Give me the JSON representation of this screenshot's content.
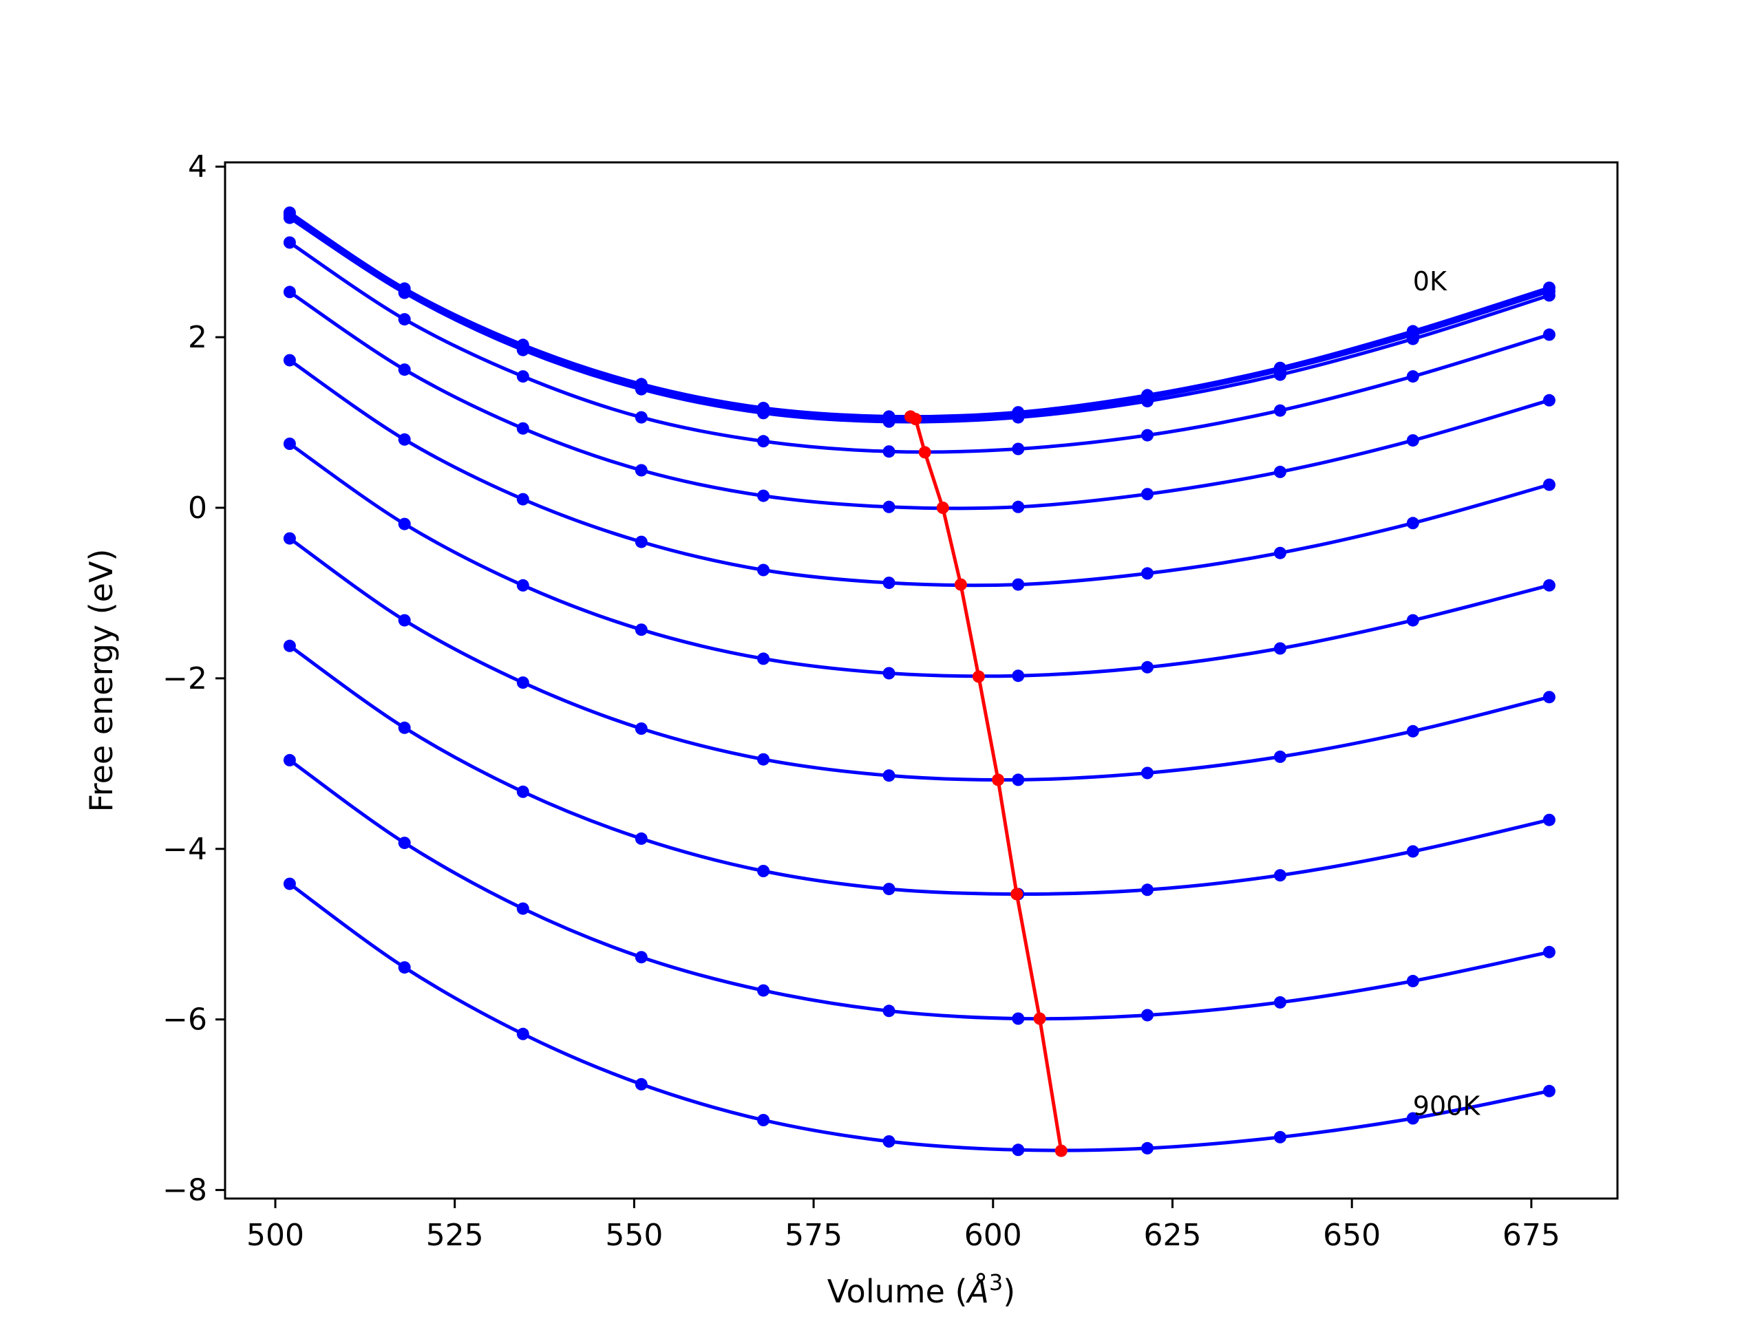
{
  "chart_data": {
    "type": "line",
    "title": "",
    "xlabel_text": "Volume (",
    "xlabel_unit": "Å",
    "xlabel_exp": "3",
    "xlabel_close": ")",
    "ylabel": "Free energy (eV)",
    "xlim": [
      493,
      687
    ],
    "ylim": [
      -8.1,
      4.05
    ],
    "xticks": [
      500,
      525,
      550,
      575,
      600,
      625,
      650,
      675
    ],
    "xtick_labels": [
      "500",
      "525",
      "550",
      "575",
      "600",
      "625",
      "650",
      "675"
    ],
    "yticks": [
      4,
      2,
      0,
      -2,
      -4,
      -6,
      -8
    ],
    "ytick_labels": [
      "4",
      "2",
      "0",
      "−2",
      "−4",
      "−6",
      "−8"
    ],
    "grid": false,
    "x": [
      502,
      518,
      534.5,
      551,
      568,
      585.5,
      603.5,
      621.5,
      640,
      658.5,
      677.5
    ],
    "series": [
      {
        "color": "#0000ff",
        "values": [
          3.46,
          2.57,
          1.91,
          1.45,
          1.17,
          1.07,
          1.12,
          1.32,
          1.64,
          2.07,
          2.58
        ]
      },
      {
        "color": "#0000ff",
        "values": [
          3.43,
          2.55,
          1.88,
          1.42,
          1.14,
          1.04,
          1.09,
          1.29,
          1.61,
          2.03,
          2.54
        ]
      },
      {
        "color": "#0000ff",
        "values": [
          3.4,
          2.52,
          1.85,
          1.39,
          1.11,
          1.01,
          1.06,
          1.25,
          1.56,
          1.98,
          2.49
        ]
      },
      {
        "color": "#0000ff",
        "values": [
          3.11,
          2.21,
          1.54,
          1.06,
          0.78,
          0.66,
          0.69,
          0.85,
          1.14,
          1.54,
          2.03
        ]
      },
      {
        "color": "#0000ff",
        "values": [
          2.53,
          1.62,
          0.93,
          0.44,
          0.14,
          0.01,
          0.01,
          0.16,
          0.42,
          0.79,
          1.26
        ]
      },
      {
        "color": "#0000ff",
        "values": [
          1.73,
          0.8,
          0.1,
          -0.4,
          -0.73,
          -0.88,
          -0.9,
          -0.77,
          -0.53,
          -0.18,
          0.27
        ]
      },
      {
        "color": "#0000ff",
        "values": [
          0.75,
          -0.19,
          -0.91,
          -1.43,
          -1.77,
          -1.94,
          -1.97,
          -1.87,
          -1.65,
          -1.32,
          -0.91
        ]
      },
      {
        "color": "#0000ff",
        "values": [
          -0.36,
          -1.32,
          -2.05,
          -2.59,
          -2.95,
          -3.14,
          -3.19,
          -3.11,
          -2.92,
          -2.62,
          -2.22
        ]
      },
      {
        "color": "#0000ff",
        "values": [
          -1.62,
          -2.58,
          -3.33,
          -3.88,
          -4.26,
          -4.47,
          -4.53,
          -4.48,
          -4.31,
          -4.03,
          -3.66
        ]
      },
      {
        "color": "#0000ff",
        "values": [
          -2.96,
          -3.93,
          -4.7,
          -5.27,
          -5.66,
          -5.9,
          -5.99,
          -5.95,
          -5.8,
          -5.55,
          -5.21
        ]
      },
      {
        "color": "#0000ff",
        "values": [
          -4.41,
          -5.39,
          -6.17,
          -6.76,
          -7.18,
          -7.43,
          -7.53,
          -7.51,
          -7.38,
          -7.16,
          -6.84
        ]
      }
    ],
    "minima": {
      "color": "#ff0000",
      "x": [
        588.5,
        589.2,
        590.5,
        593.0,
        595.5,
        598.0,
        600.7,
        603.3,
        606.5,
        609.5
      ],
      "y": [
        1.07,
        1.04,
        0.65,
        0.0,
        -0.9,
        -1.98,
        -3.19,
        -4.53,
        -5.99,
        -7.54
      ]
    },
    "annotations": [
      {
        "text": "0K",
        "x": 658.5,
        "y": 2.55
      },
      {
        "text": "900K",
        "x": 658.5,
        "y": -7.12
      }
    ]
  }
}
